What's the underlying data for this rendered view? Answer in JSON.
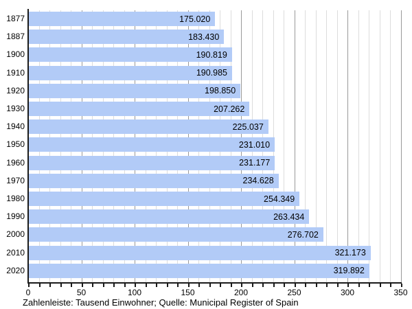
{
  "caption": "Zahlenleiste: Tausend Einwohner; Quelle: Municipal Register of Spain",
  "chart_data": {
    "type": "bar",
    "orientation": "horizontal",
    "title": "",
    "xlabel": "",
    "ylabel": "",
    "categories": [
      "1877",
      "1887",
      "1900",
      "1910",
      "1920",
      "1930",
      "1940",
      "1950",
      "1960",
      "1970",
      "1980",
      "1990",
      "2000",
      "2010",
      "2020"
    ],
    "values": [
      175.02,
      183.43,
      190.819,
      190.985,
      198.85,
      207.262,
      225.037,
      231.01,
      231.177,
      234.628,
      254.349,
      263.434,
      276.702,
      321.173,
      319.892
    ],
    "value_labels": [
      "175.020",
      "183.430",
      "190.819",
      "190.985",
      "198.850",
      "207.262",
      "225.037",
      "231.010",
      "231.177",
      "234.628",
      "254.349",
      "263.434",
      "276.702",
      "321.173",
      "319.892"
    ],
    "unit": "Tausend Einwohner",
    "xlim": [
      0,
      350
    ],
    "x_major_ticks": [
      0,
      50,
      100,
      150,
      200,
      250,
      300,
      350
    ],
    "x_tick_labels": [
      "0",
      "50",
      "100",
      "150",
      "200",
      "250",
      "300",
      "350"
    ],
    "x_minor_step": 10,
    "grid": true,
    "legend": "none",
    "bar_color": "#b2cbf7",
    "minor_grid_color": "#dcdcdc",
    "major_grid_color": "#999999",
    "axis_color": "#1a1a1a",
    "text_color": "#000000"
  }
}
